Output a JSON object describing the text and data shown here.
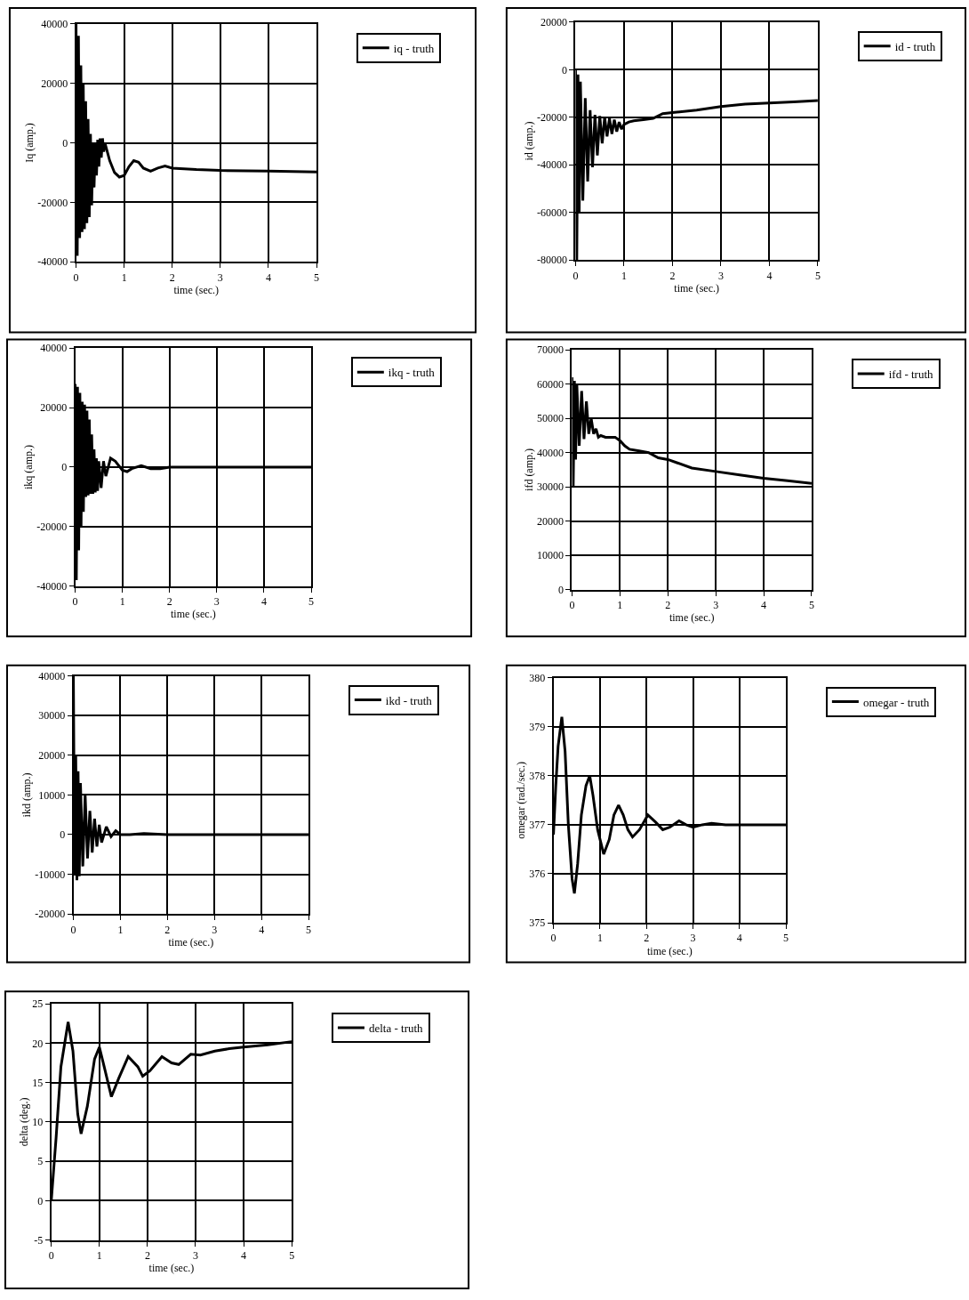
{
  "chart_data": [
    {
      "type": "line",
      "ylabel": "Iq (amp.)",
      "xlabel": "time (sec.)",
      "xlim": [
        0,
        5
      ],
      "xticks": [
        0,
        1,
        2,
        3,
        4,
        5
      ],
      "ylim": [
        -40000,
        40000
      ],
      "yticks": [
        -40000,
        -20000,
        0,
        20000,
        40000
      ],
      "grid": true,
      "legend": "top right",
      "series": [
        {
          "name": "iq - truth",
          "color": "#000000",
          "x": [
            0,
            0.025,
            0.05,
            0.075,
            0.1,
            0.125,
            0.15,
            0.175,
            0.2,
            0.225,
            0.25,
            0.275,
            0.3,
            0.325,
            0.35,
            0.375,
            0.4,
            0.425,
            0.45,
            0.475,
            0.5,
            0.525,
            0.55,
            0.575,
            0.6,
            0.7,
            0.8,
            0.9,
            1.0,
            1.1,
            1.2,
            1.3,
            1.4,
            1.55,
            1.7,
            1.85,
            2.0,
            2.5,
            3.0,
            4.0,
            5.0
          ],
          "values": [
            40000,
            -38000,
            36000,
            -32000,
            26000,
            -30000,
            20000,
            -29000,
            14000,
            -27000,
            8000,
            -25000,
            3000,
            -21000,
            0,
            -15000,
            0,
            -11000,
            1000,
            -8000,
            1500,
            -5000,
            1500,
            -3000,
            0,
            -6000,
            -10000,
            -11500,
            -11000,
            -8000,
            -6000,
            -6500,
            -8500,
            -9500,
            -8500,
            -7800,
            -8500,
            -9000,
            -9300,
            -9500,
            -9800
          ]
        }
      ]
    },
    {
      "type": "line",
      "ylabel": "id (amp.)",
      "xlabel": "time (sec.)",
      "xlim": [
        0,
        5
      ],
      "xticks": [
        0,
        1,
        2,
        3,
        4,
        5
      ],
      "ylim": [
        -80000,
        20000
      ],
      "yticks": [
        -80000,
        -60000,
        -40000,
        -20000,
        0,
        20000
      ],
      "grid": true,
      "legend": "top right",
      "series": [
        {
          "name": "id - truth",
          "color": "#000000",
          "x": [
            0,
            0.025,
            0.05,
            0.075,
            0.1,
            0.15,
            0.2,
            0.25,
            0.3,
            0.35,
            0.4,
            0.45,
            0.5,
            0.55,
            0.6,
            0.65,
            0.7,
            0.75,
            0.8,
            0.85,
            0.9,
            0.95,
            1.0,
            1.1,
            1.2,
            1.4,
            1.6,
            1.8,
            2.0,
            2.5,
            3.0,
            3.5,
            4.0,
            4.5,
            5.0
          ],
          "values": [
            0,
            -80000,
            -2000,
            -60000,
            -5000,
            -55000,
            -12000,
            -47000,
            -17000,
            -41000,
            -19000,
            -36000,
            -19500,
            -31000,
            -20000,
            -28000,
            -20500,
            -27000,
            -21000,
            -26000,
            -22000,
            -25000,
            -23000,
            -22000,
            -21500,
            -21000,
            -20500,
            -18500,
            -18000,
            -17000,
            -15500,
            -14500,
            -14000,
            -13500,
            -13000
          ]
        }
      ]
    },
    {
      "type": "line",
      "ylabel": "ikq (amp.)",
      "xlabel": "time (sec.)",
      "xlim": [
        0,
        5
      ],
      "xticks": [
        0,
        1,
        2,
        3,
        4,
        5
      ],
      "ylim": [
        -40000,
        40000
      ],
      "yticks": [
        -40000,
        -20000,
        0,
        20000,
        40000
      ],
      "grid": true,
      "legend": "top right",
      "series": [
        {
          "name": "ikq - truth",
          "color": "#000000",
          "x": [
            0,
            0.025,
            0.05,
            0.075,
            0.1,
            0.125,
            0.15,
            0.175,
            0.2,
            0.225,
            0.25,
            0.275,
            0.3,
            0.325,
            0.35,
            0.375,
            0.4,
            0.425,
            0.45,
            0.475,
            0.5,
            0.55,
            0.6,
            0.65,
            0.75,
            0.85,
            1.0,
            1.1,
            1.2,
            1.4,
            1.6,
            1.8,
            2.0,
            2.5,
            3.0,
            5.0
          ],
          "values": [
            28000,
            -38000,
            27000,
            -28000,
            25000,
            -20000,
            22000,
            -15000,
            21000,
            -10000,
            19000,
            -9500,
            16000,
            -9000,
            11000,
            -9000,
            6000,
            -8500,
            3000,
            -8000,
            2000,
            -7000,
            2000,
            -3000,
            3000,
            2000,
            -1000,
            -1500,
            -500,
            500,
            -500,
            -500,
            0,
            0,
            0,
            0
          ]
        }
      ]
    },
    {
      "type": "line",
      "ylabel": "ifd (amp.)",
      "xlabel": "time (sec.)",
      "xlim": [
        0,
        5
      ],
      "xticks": [
        0,
        1,
        2,
        3,
        4,
        5
      ],
      "ylim": [
        0,
        70000
      ],
      "yticks": [
        0,
        10000,
        20000,
        30000,
        40000,
        50000,
        60000,
        70000
      ],
      "grid": true,
      "legend": "top right",
      "series": [
        {
          "name": "ifd - truth",
          "color": "#000000",
          "x": [
            0,
            0.025,
            0.05,
            0.075,
            0.1,
            0.15,
            0.2,
            0.25,
            0.3,
            0.35,
            0.4,
            0.45,
            0.5,
            0.55,
            0.6,
            0.7,
            0.8,
            0.9,
            1.0,
            1.1,
            1.2,
            1.4,
            1.6,
            1.8,
            2.0,
            2.2,
            2.5,
            3.0,
            3.5,
            4.0,
            4.5,
            5.0
          ],
          "values": [
            62000,
            30000,
            61000,
            38000,
            60000,
            42000,
            58000,
            44000,
            55000,
            45500,
            50000,
            45500,
            47000,
            44500,
            45000,
            44500,
            44500,
            44500,
            43500,
            42000,
            41000,
            40500,
            40000,
            38500,
            38000,
            37000,
            35500,
            34500,
            33500,
            32500,
            31800,
            31000
          ]
        }
      ]
    },
    {
      "type": "line",
      "ylabel": "ikd (amp.)",
      "xlabel": "time (sec.)",
      "xlim": [
        0,
        5
      ],
      "xticks": [
        0,
        1,
        2,
        3,
        4,
        5
      ],
      "ylim": [
        -20000,
        40000
      ],
      "yticks": [
        -20000,
        -10000,
        0,
        10000,
        20000,
        30000,
        40000
      ],
      "grid": true,
      "legend": "top right",
      "series": [
        {
          "name": "ikd - truth",
          "color": "#000000",
          "x": [
            0,
            0.025,
            0.05,
            0.075,
            0.1,
            0.125,
            0.15,
            0.2,
            0.25,
            0.3,
            0.35,
            0.4,
            0.45,
            0.5,
            0.55,
            0.6,
            0.7,
            0.8,
            0.9,
            1.0,
            1.2,
            1.5,
            2.0,
            3.0,
            5.0
          ],
          "values": [
            40000,
            -10000,
            20000,
            -11500,
            16000,
            -10500,
            13000,
            -8000,
            10000,
            -6000,
            6000,
            -4500,
            4000,
            -3000,
            2500,
            -2000,
            2000,
            -500,
            1000,
            0,
            0,
            300,
            0,
            0,
            0
          ]
        }
      ]
    },
    {
      "type": "line",
      "ylabel": "omegar (rad./sec.)",
      "xlabel": "time (sec.)",
      "xlim": [
        0,
        5
      ],
      "xticks": [
        0,
        1,
        2,
        3,
        4,
        5
      ],
      "ylim": [
        375,
        380
      ],
      "yticks": [
        375,
        376,
        377,
        378,
        379,
        380
      ],
      "grid": true,
      "legend": "top right",
      "series": [
        {
          "name": "omegar - truth",
          "color": "#000000",
          "x": [
            0,
            0.05,
            0.1,
            0.18,
            0.25,
            0.32,
            0.4,
            0.45,
            0.52,
            0.6,
            0.7,
            0.78,
            0.85,
            0.95,
            1.08,
            1.2,
            1.3,
            1.4,
            1.5,
            1.6,
            1.7,
            1.85,
            2.03,
            2.2,
            2.35,
            2.5,
            2.7,
            2.85,
            3.0,
            3.2,
            3.4,
            3.7,
            4.0,
            5.0
          ],
          "values": [
            376.8,
            377.8,
            378.6,
            379.2,
            378.5,
            377.0,
            375.9,
            375.6,
            376.2,
            377.2,
            377.8,
            378.0,
            377.6,
            376.9,
            376.4,
            376.7,
            377.2,
            377.4,
            377.2,
            376.9,
            376.75,
            376.9,
            377.2,
            377.05,
            376.9,
            376.95,
            377.08,
            377.0,
            376.95,
            377.0,
            377.03,
            377.0,
            377.0,
            377.0
          ]
        }
      ]
    },
    {
      "type": "line",
      "ylabel": "delta (deg.)",
      "xlabel": "time (sec.)",
      "xlim": [
        0,
        5
      ],
      "xticks": [
        0,
        1,
        2,
        3,
        4,
        5
      ],
      "ylim": [
        -5,
        25
      ],
      "yticks": [
        -5,
        0,
        5,
        10,
        15,
        20,
        25
      ],
      "grid": true,
      "legend": "top right",
      "series": [
        {
          "name": "delta - truth",
          "color": "#000000",
          "x": [
            0,
            0.1,
            0.2,
            0.35,
            0.45,
            0.55,
            0.62,
            0.75,
            0.9,
            1.0,
            1.1,
            1.25,
            1.4,
            1.6,
            1.8,
            1.9,
            2.05,
            2.3,
            2.5,
            2.65,
            2.9,
            3.1,
            3.4,
            3.7,
            4.0,
            4.5,
            5.0
          ],
          "values": [
            0,
            8,
            17,
            22.7,
            19,
            11,
            8.5,
            12,
            18,
            19.5,
            17,
            13.2,
            15.5,
            18.3,
            17,
            15.8,
            16.5,
            18.3,
            17.5,
            17.3,
            18.6,
            18.5,
            19,
            19.3,
            19.5,
            19.8,
            20.2
          ]
        }
      ]
    }
  ]
}
